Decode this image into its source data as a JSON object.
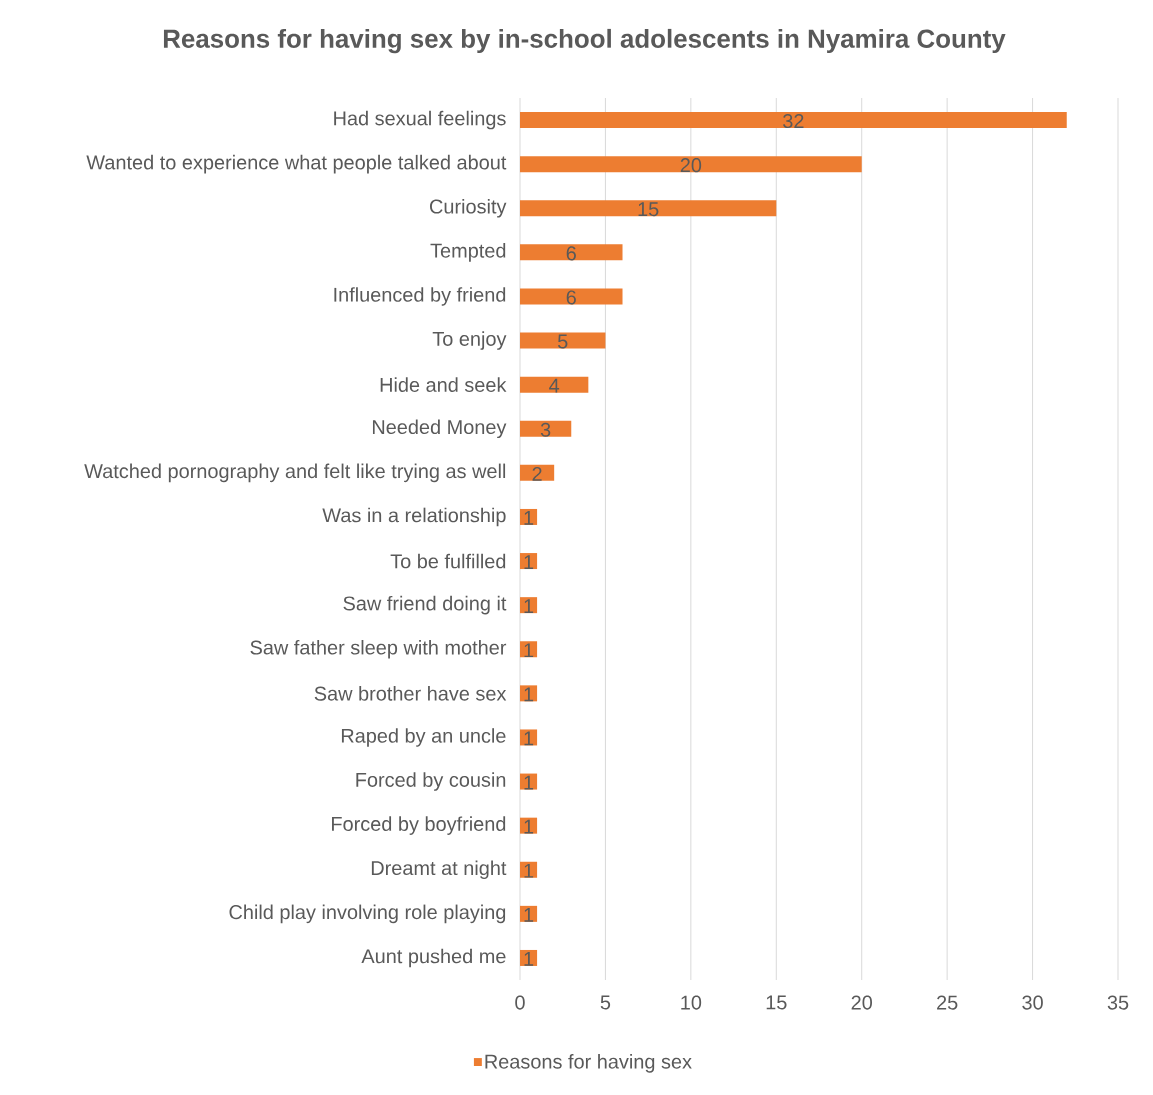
{
  "chart_data": {
    "type": "bar",
    "orientation": "horizontal",
    "title": "Reasons for having sex by in-school adolescents in Nyamira County",
    "categories": [
      "Had sexual feelings",
      "Wanted to experience what people talked about",
      "Curiosity",
      "Tempted",
      "Influenced by friend",
      "To enjoy",
      "Hide and seek",
      "Needed Money",
      "Watched pornography and felt like trying as well",
      "Was in a relationship",
      "To be fulfilled",
      "Saw friend doing it",
      "Saw father sleep with mother",
      "Saw brother have sex",
      "Raped by an uncle",
      "Forced by cousin",
      "Forced by boyfriend",
      "Dreamt at night",
      "Child play involving role playing",
      "Aunt pushed me"
    ],
    "series": [
      {
        "name": "Reasons for having sex",
        "color": "#ed7d31",
        "values": [
          32,
          20,
          15,
          6,
          6,
          5,
          4,
          3,
          2,
          1,
          1,
          1,
          1,
          1,
          1,
          1,
          1,
          1,
          1,
          1
        ]
      }
    ],
    "xlim": [
      0,
      35
    ],
    "xticks": [
      0,
      5,
      10,
      15,
      20,
      25,
      30,
      35
    ],
    "grid": "x",
    "legend": "bottom",
    "data_labels": true
  }
}
